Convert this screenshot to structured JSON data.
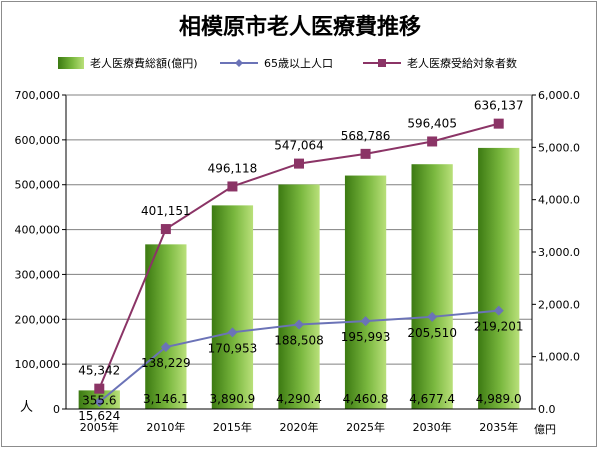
{
  "chart_data": {
    "type": "bar",
    "title": "相模原市老人医療費推移",
    "categories": [
      "2005年",
      "2010年",
      "2015年",
      "2020年",
      "2025年",
      "2030年",
      "2035年"
    ],
    "y_left": {
      "min": 0,
      "max": 700000,
      "step": 100000,
      "ticks": [
        "0",
        "100,000",
        "200,000",
        "300,000",
        "400,000",
        "500,000",
        "600,000",
        "700,000"
      ],
      "unit_label": "人"
    },
    "y_right": {
      "min": 0,
      "max": 6000,
      "step": 1000,
      "ticks": [
        "0.0",
        "1,000.0",
        "2,000.0",
        "3,000.0",
        "4,000.0",
        "5,000.0",
        "6,000.0"
      ],
      "unit_label": "億円"
    },
    "grid": true,
    "legend_position": "top",
    "series": [
      {
        "name": "老人医療費総額(億円)",
        "type": "bar",
        "axis": "right",
        "values": [
          355.6,
          3146.1,
          3890.9,
          4290.4,
          4460.8,
          4677.4,
          4989.0
        ],
        "labels": [
          "355.6",
          "3,146.1",
          "3,890.9",
          "4,290.4",
          "4,460.8",
          "4,677.4",
          "4,989.0"
        ],
        "color": "#6aa83a"
      },
      {
        "name": "65歳以上人口",
        "type": "line",
        "axis": "left",
        "values": [
          15624,
          138229,
          170953,
          188508,
          195993,
          205510,
          219201
        ],
        "labels": [
          "15,624",
          "138,229",
          "170,953",
          "188,508",
          "195,993",
          "205,510",
          "219,201"
        ],
        "color": "#6b73b7"
      },
      {
        "name": "老人医療受給対象者数",
        "type": "line",
        "axis": "left",
        "values": [
          45342,
          401151,
          496118,
          547064,
          568786,
          596405,
          636137
        ],
        "labels": [
          "45,342",
          "401,151",
          "496,118",
          "547,064",
          "568,786",
          "596,405",
          "636,137"
        ],
        "color": "#8b3466"
      }
    ]
  }
}
